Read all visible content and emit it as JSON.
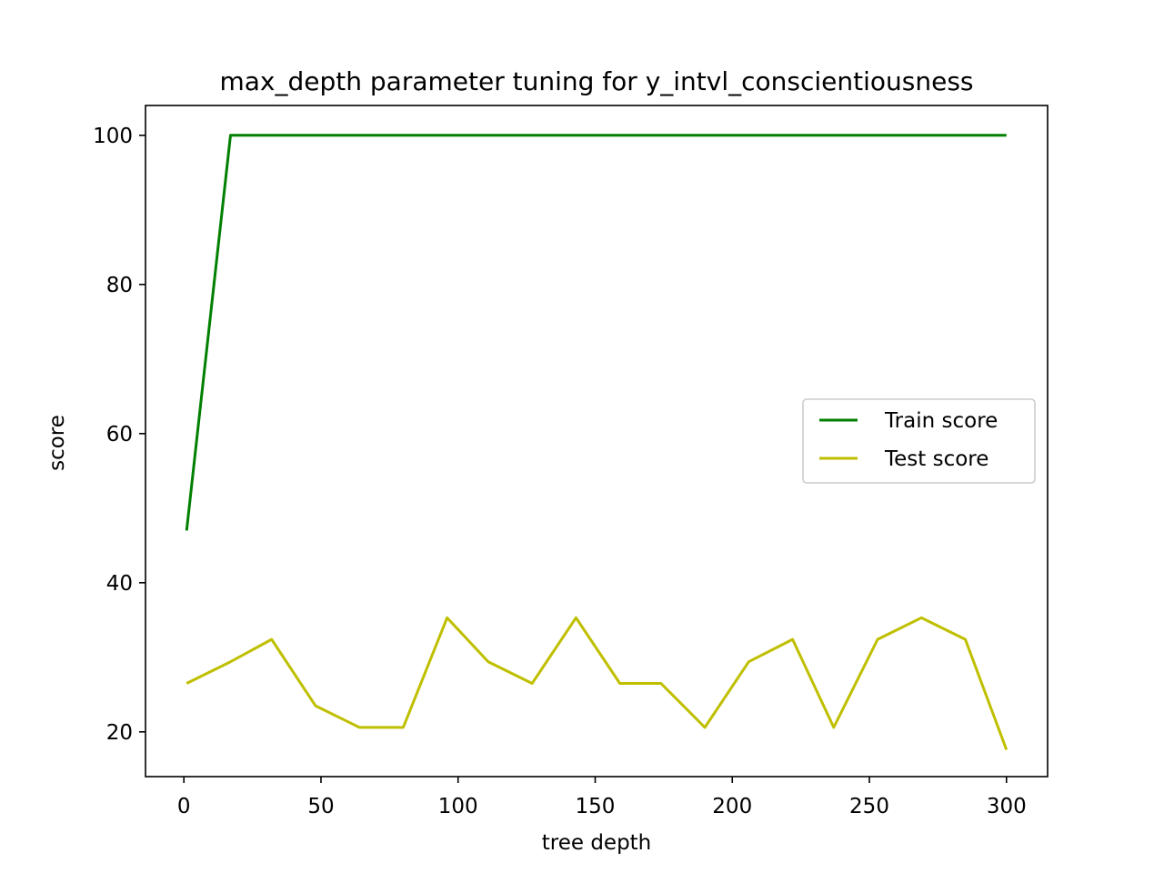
{
  "chart_data": {
    "type": "line",
    "title": "max_depth parameter tuning for y_intvl_conscientiousness",
    "xlabel": "tree depth",
    "ylabel": "score",
    "xlim": [
      -14,
      315
    ],
    "ylim": [
      14,
      104
    ],
    "xticks": [
      0,
      50,
      100,
      150,
      200,
      250,
      300
    ],
    "yticks": [
      20,
      40,
      60,
      80,
      100
    ],
    "grid": false,
    "legend_position": "center-right",
    "series": [
      {
        "name": "Train score",
        "color": "#008000",
        "x": [
          1,
          17,
          32,
          48,
          64,
          80,
          96,
          111,
          127,
          143,
          159,
          174,
          190,
          206,
          222,
          237,
          253,
          269,
          285,
          300
        ],
        "y": [
          47,
          100,
          100,
          100,
          100,
          100,
          100,
          100,
          100,
          100,
          100,
          100,
          100,
          100,
          100,
          100,
          100,
          100,
          100,
          100
        ]
      },
      {
        "name": "Test score",
        "color": "#bfbf00",
        "x": [
          1,
          17,
          32,
          48,
          64,
          80,
          96,
          111,
          127,
          143,
          159,
          174,
          190,
          206,
          222,
          237,
          253,
          269,
          285,
          300
        ],
        "y": [
          26.5,
          29.4,
          32.4,
          23.5,
          20.6,
          20.6,
          35.3,
          29.4,
          26.5,
          35.3,
          26.5,
          26.5,
          20.6,
          29.4,
          32.4,
          20.6,
          32.4,
          35.3,
          32.4,
          17.6
        ]
      }
    ]
  }
}
